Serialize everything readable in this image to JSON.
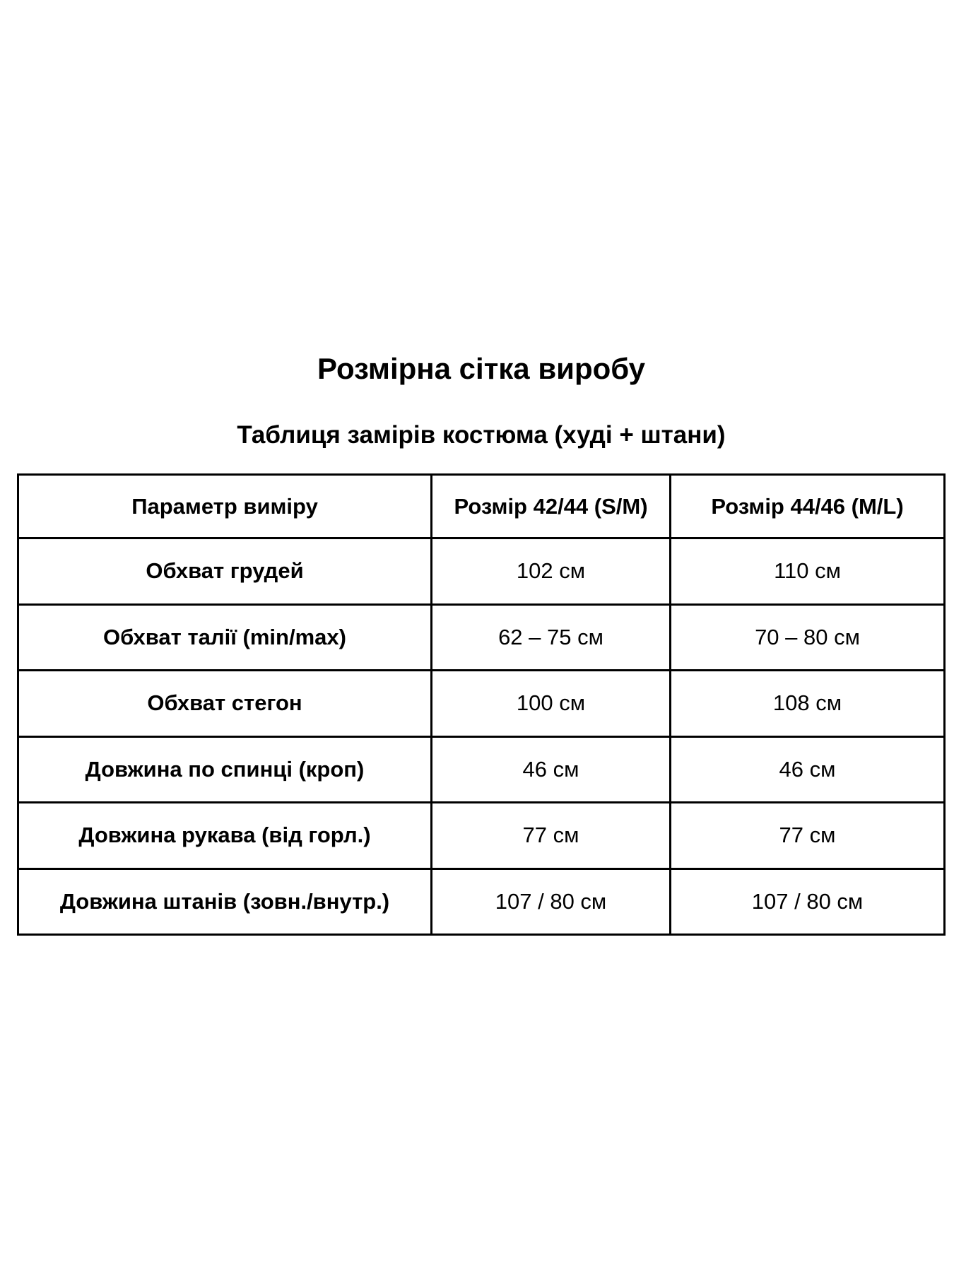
{
  "header": {
    "title": "Розмірна сітка виробу",
    "subtitle": "Таблиця замірів костюма (худі + штани)"
  },
  "table": {
    "columns": [
      "Параметр виміру",
      "Розмір 42/44 (S/M)",
      "Розмір 44/46 (M/L)"
    ],
    "rows": [
      [
        "Обхват грудей",
        "102 см",
        "110 см"
      ],
      [
        "Обхват талії (min/max)",
        "62 – 75 см",
        "70 – 80 см"
      ],
      [
        "Обхват стегон",
        "100 см",
        "108 см"
      ],
      [
        "Довжина по спинці (кроп)",
        "46 см",
        "46 см"
      ],
      [
        "Довжина рукава (від горл.)",
        "77 см",
        "77 см"
      ],
      [
        "Довжина штанів (зовн./внутр.)",
        "107 / 80 см",
        "107 / 80 см"
      ]
    ]
  }
}
